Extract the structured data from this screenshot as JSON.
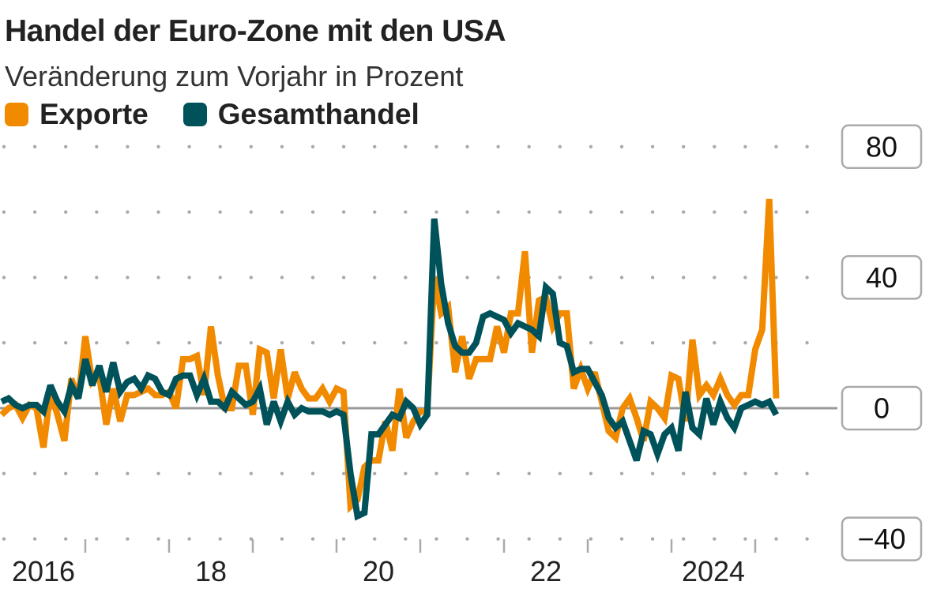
{
  "chart_data": {
    "type": "line",
    "title": "Handel der Euro-Zone mit den USA",
    "subtitle": "Veränderung zum Vorjahr in Prozent",
    "x_start": "2016-01",
    "x_end": "2025-04",
    "frequency": "monthly",
    "x_tick_labels": [
      "2016",
      "18",
      "20",
      "22",
      "2024"
    ],
    "y_ticks": [
      80,
      40,
      0,
      -40
    ],
    "y_tick_labels": [
      "80",
      "40",
      "0",
      "−40"
    ],
    "ylim": [
      -40,
      80
    ],
    "grid": "dotted horizontal every 20, solid zero line",
    "legend_position": "top-left",
    "colors": {
      "Exporte": "#f28a00",
      "Gesamthandel": "#00525a"
    },
    "series": [
      {
        "name": "Exporte",
        "values": [
          -2,
          0,
          1,
          -3,
          1,
          0,
          -12,
          5,
          -2,
          -10,
          9,
          3,
          22,
          8,
          10,
          -5,
          6,
          -4,
          4,
          4,
          5,
          6,
          4,
          4,
          5,
          0,
          15,
          15,
          16,
          4,
          25,
          10,
          0,
          0,
          13,
          13,
          -2,
          18,
          17,
          3,
          18,
          3,
          11,
          6,
          3,
          3,
          6,
          2,
          6,
          5,
          -30,
          -28,
          -18,
          -16,
          -16,
          -4,
          -13,
          6,
          -9,
          -4,
          -1,
          -1,
          40,
          29,
          31,
          11,
          22,
          9,
          15,
          15,
          15,
          25,
          17,
          29,
          29,
          48,
          17,
          33,
          34,
          25,
          29,
          29,
          6,
          12,
          6,
          11,
          2,
          -7,
          -9,
          0,
          3,
          -3,
          -10,
          2,
          0,
          -3,
          10,
          9,
          -4,
          21,
          4,
          7,
          4,
          9,
          4,
          1,
          4,
          4,
          18,
          24,
          64,
          3
        ]
      },
      {
        "name": "Gesamthandel",
        "values": [
          2,
          3,
          1,
          0,
          1,
          1,
          -1,
          7,
          2,
          -1,
          7,
          3,
          15,
          7,
          13,
          5,
          14,
          5,
          8,
          9,
          6,
          10,
          9,
          5,
          4,
          9,
          10,
          10,
          4,
          9,
          2,
          2,
          0,
          5,
          3,
          1,
          2,
          6,
          -5,
          2,
          -4,
          2,
          -2,
          0,
          -1,
          -1,
          -1,
          -2,
          -1,
          -2,
          -20,
          -33,
          -32,
          -8,
          -8,
          -5,
          -2,
          -3,
          2,
          0,
          -5,
          -2,
          58,
          38,
          26,
          19,
          17,
          17,
          20,
          28,
          29,
          28,
          27,
          23,
          26,
          25,
          24,
          22,
          37,
          35,
          20,
          19,
          11,
          12,
          12,
          8,
          4,
          -3,
          -6,
          -4,
          -10,
          -16,
          -7,
          -8,
          -14,
          -8,
          -6,
          -13,
          5,
          -6,
          -8,
          3,
          -5,
          2,
          -3,
          -6,
          0,
          1,
          2,
          1,
          2,
          -2
        ]
      }
    ]
  }
}
